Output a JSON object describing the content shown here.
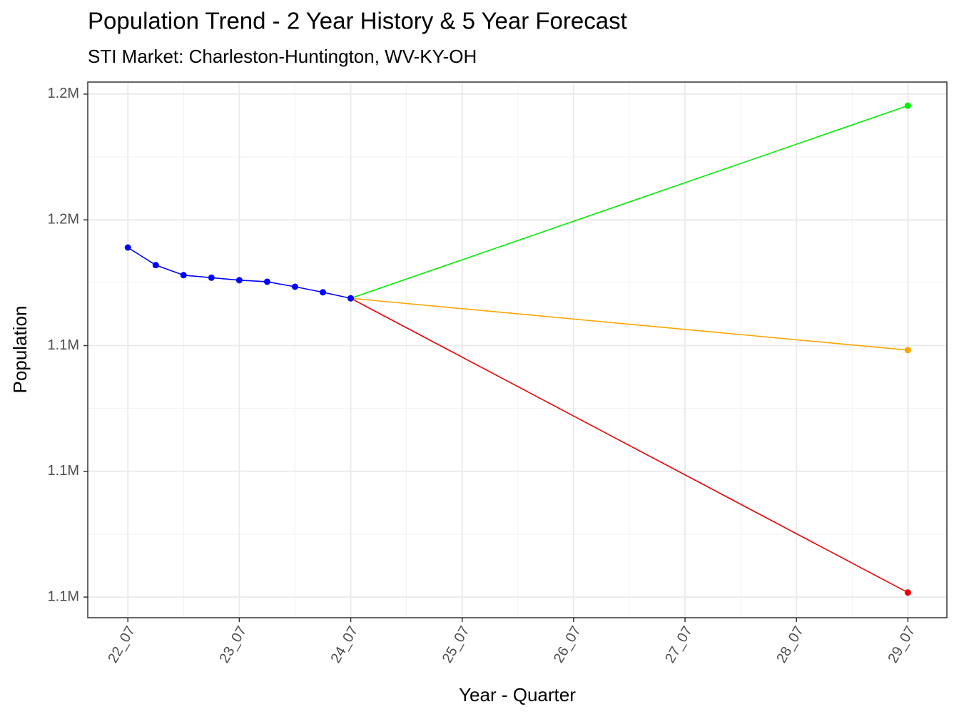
{
  "chart_data": {
    "type": "line",
    "title": "Population Trend - 2 Year History & 5 Year Forecast",
    "subtitle": "STI Market: Charleston-Huntington, WV-KY-OH",
    "x_label": "Year - Quarter",
    "y_label": "Population",
    "xlim": [
      22.14,
      29.85
    ],
    "xticks": [
      {
        "value": 22.5,
        "label": "22_07"
      },
      {
        "value": 23.5,
        "label": "23_07"
      },
      {
        "value": 24.5,
        "label": "24_07"
      },
      {
        "value": 25.5,
        "label": "25_07"
      },
      {
        "value": 26.5,
        "label": "26_07"
      },
      {
        "value": 27.5,
        "label": "27_07"
      },
      {
        "value": 28.5,
        "label": "28_07"
      },
      {
        "value": 29.5,
        "label": "29_07"
      }
    ],
    "ylim": [
      1095900,
      1202400
    ],
    "yticks": [
      {
        "value": 1200000,
        "label": "1.2M"
      },
      {
        "value": 1175000,
        "label": "1.2M"
      },
      {
        "value": 1150000,
        "label": "1.1M"
      },
      {
        "value": 1125000,
        "label": "1.1M"
      },
      {
        "value": 1100000,
        "label": "1.1M"
      }
    ],
    "grid": true,
    "series": [
      {
        "color": "#0000ff",
        "x": [
          22.5,
          22.75,
          23.0,
          23.25,
          23.5,
          23.75,
          24.0,
          24.25,
          24.5
        ],
        "values": [
          1169500,
          1166000,
          1164000,
          1163500,
          1163000,
          1162700,
          1161700,
          1160600,
          1159400
        ]
      },
      {
        "color": "#00ee00",
        "x": [
          24.5,
          29.5
        ],
        "values": [
          1159400,
          1197700
        ]
      },
      {
        "color": "#ffa500",
        "x": [
          24.5,
          29.5
        ],
        "values": [
          1159400,
          1149100
        ]
      },
      {
        "color": "#ee0000",
        "x": [
          24.5,
          29.5
        ],
        "values": [
          1159400,
          1100900
        ]
      }
    ]
  }
}
